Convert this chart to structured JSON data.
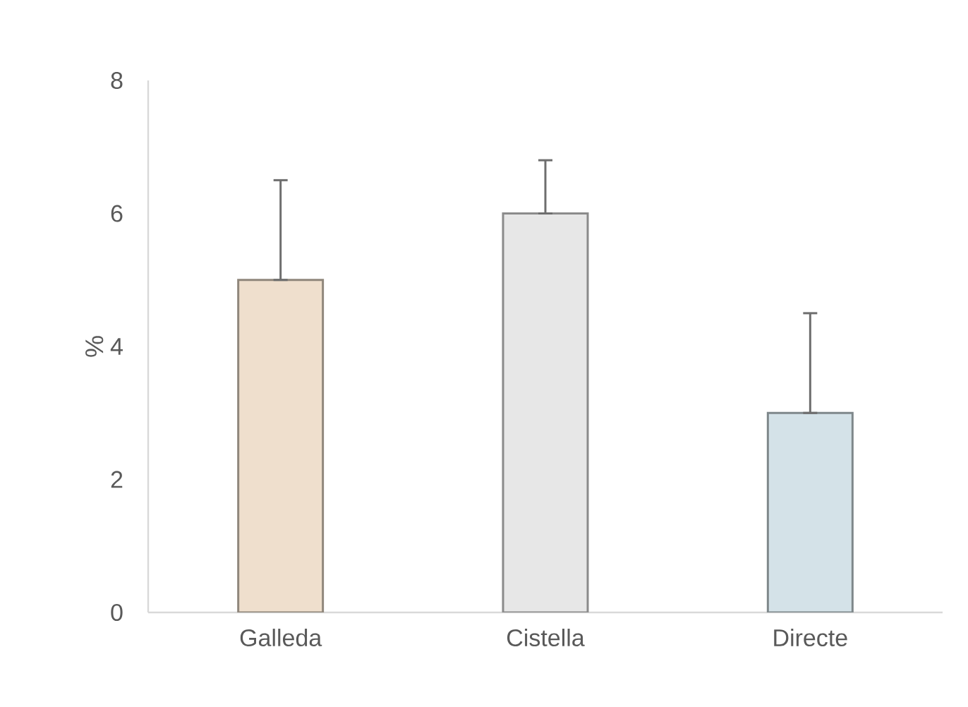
{
  "chart_data": {
    "type": "bar",
    "ylabel": "%",
    "categories": [
      "Galleda",
      "Cistella",
      "Directe"
    ],
    "values": [
      5,
      6,
      3
    ],
    "colors": [
      "#efdfcd",
      "#e7e7e7",
      "#d4e2e8"
    ],
    "errors": [
      [
        5,
        6.5
      ],
      [
        6,
        6.8
      ],
      [
        3,
        4.5
      ]
    ],
    "ylim": [
      0,
      8
    ],
    "yticks": [
      0,
      2,
      4,
      6,
      8
    ],
    "grid": false
  }
}
